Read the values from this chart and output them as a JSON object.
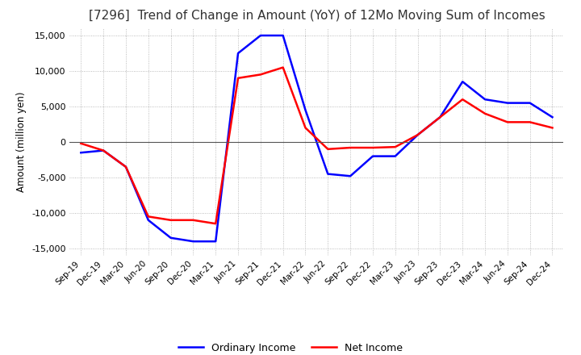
{
  "title": "[7296]  Trend of Change in Amount (YoY) of 12Mo Moving Sum of Incomes",
  "ylabel": "Amount (million yen)",
  "ylim": [
    -16000,
    16000
  ],
  "yticks": [
    -15000,
    -10000,
    -5000,
    0,
    5000,
    10000,
    15000
  ],
  "x_labels": [
    "Sep-19",
    "Dec-19",
    "Mar-20",
    "Jun-20",
    "Sep-20",
    "Dec-20",
    "Mar-21",
    "Jun-21",
    "Sep-21",
    "Dec-21",
    "Mar-22",
    "Jun-22",
    "Sep-22",
    "Dec-22",
    "Mar-23",
    "Jun-23",
    "Sep-23",
    "Dec-23",
    "Mar-24",
    "Jun-24",
    "Sep-24",
    "Dec-24"
  ],
  "ordinary_income": [
    -1500,
    -1200,
    -3500,
    -11000,
    -13500,
    -14000,
    -14000,
    12500,
    15000,
    15000,
    4500,
    -4500,
    -4800,
    -2000,
    -2000,
    1000,
    3500,
    8500,
    6000,
    5500,
    5500,
    3500
  ],
  "net_income": [
    -200,
    -1200,
    -3500,
    -10500,
    -11000,
    -11000,
    -11500,
    9000,
    9500,
    10500,
    2000,
    -1000,
    -800,
    -800,
    -700,
    1000,
    3500,
    6000,
    4000,
    2800,
    2800,
    2000
  ],
  "ordinary_color": "#0000ff",
  "net_color": "#ff0000",
  "grid_color": "#aaaaaa",
  "background_color": "#ffffff",
  "title_fontsize": 11,
  "legend_labels": [
    "Ordinary Income",
    "Net Income"
  ]
}
